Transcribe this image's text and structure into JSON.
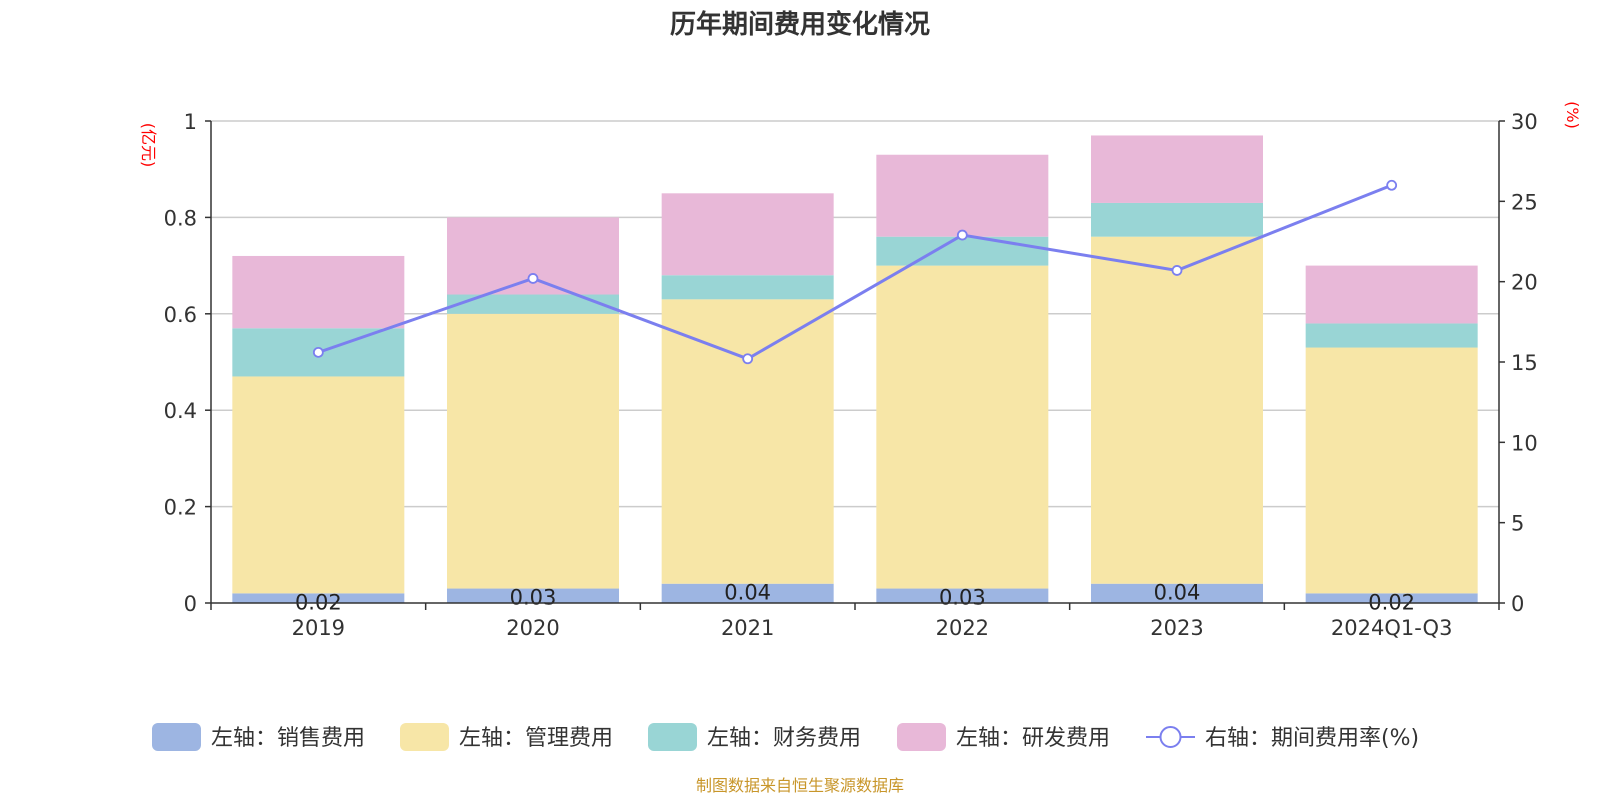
{
  "chart_data": {
    "type": "bar",
    "title": "历年期间费用变化情况",
    "left_unit": "(亿元)",
    "right_unit": "(%)",
    "categories": [
      "2019",
      "2020",
      "2021",
      "2022",
      "2023",
      "2024Q1-Q3"
    ],
    "left_axis": {
      "ylim": [
        0,
        1
      ],
      "ticks": [
        "0",
        "0.2",
        "0.4",
        "0.6",
        "0.8",
        "1"
      ]
    },
    "right_axis": {
      "ylim": [
        0,
        30
      ],
      "ticks": [
        "0",
        "5",
        "10",
        "15",
        "20",
        "25",
        "30"
      ]
    },
    "grid": true,
    "stacked": true,
    "series": [
      {
        "name": "左轴：销售费用",
        "type": "bar",
        "axis": "left",
        "color": "#9db5e2",
        "values": [
          0.02,
          0.03,
          0.04,
          0.03,
          0.04,
          0.02
        ],
        "labels": [
          "0.02",
          "0.03",
          "0.04",
          "0.03",
          "0.04",
          "0.02"
        ]
      },
      {
        "name": "左轴：管理费用",
        "type": "bar",
        "axis": "left",
        "color": "#f7e6a7",
        "values": [
          0.45,
          0.57,
          0.59,
          0.67,
          0.72,
          0.51
        ]
      },
      {
        "name": "左轴：财务费用",
        "type": "bar",
        "axis": "left",
        "color": "#99d5d5",
        "values": [
          0.1,
          0.04,
          0.05,
          0.06,
          0.07,
          0.05
        ]
      },
      {
        "name": "左轴：研发费用",
        "type": "bar",
        "axis": "left",
        "color": "#e8b8d8",
        "values": [
          0.15,
          0.16,
          0.17,
          0.17,
          0.14,
          0.12
        ]
      },
      {
        "name": "右轴：期间费用率(%)",
        "type": "line",
        "axis": "right",
        "color": "#7b7fef",
        "values": [
          15.6,
          20.2,
          15.2,
          22.9,
          20.7,
          26.0
        ]
      }
    ],
    "legend_position": "bottom",
    "source_note": "制图数据来自恒生聚源数据库"
  }
}
